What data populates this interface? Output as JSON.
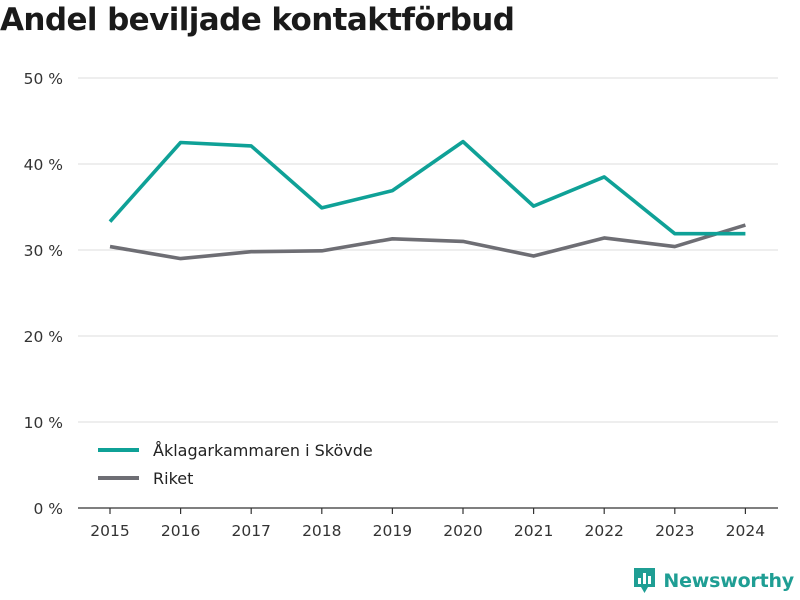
{
  "title": "Andel beviljade kontaktförbud",
  "brand": {
    "name": "Newsworthy",
    "icon": "newsworthy-logo-icon",
    "color": "#1f9e94"
  },
  "chart_data": {
    "type": "line",
    "title": "Andel beviljade kontaktförbud",
    "xlabel": "",
    "ylabel": "",
    "x": [
      2015,
      2016,
      2017,
      2018,
      2019,
      2020,
      2021,
      2022,
      2023,
      2024
    ],
    "ylim": [
      0,
      50
    ],
    "yticks": [
      0,
      10,
      20,
      30,
      40,
      50
    ],
    "ytick_labels": [
      "0 %",
      "10 %",
      "20 %",
      "30 %",
      "40 %",
      "50 %"
    ],
    "grid": true,
    "legend_position": "bottom-left",
    "series": [
      {
        "name": "Åklagarkammaren i Skövde",
        "color": "#0fa197",
        "values": [
          33.3,
          42.5,
          42.1,
          34.9,
          36.9,
          42.6,
          35.1,
          38.5,
          31.9,
          31.9
        ]
      },
      {
        "name": "Riket",
        "color": "#6e6e74",
        "values": [
          30.4,
          29.0,
          29.8,
          29.9,
          31.3,
          31.0,
          29.3,
          31.4,
          30.4,
          32.9
        ]
      }
    ]
  }
}
